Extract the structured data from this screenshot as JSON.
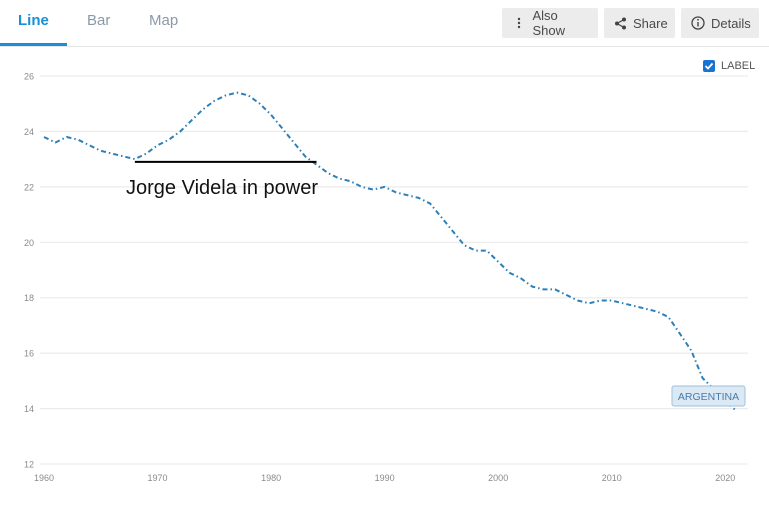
{
  "tabs": [
    {
      "label": "Line",
      "active": true
    },
    {
      "label": "Bar",
      "active": false
    },
    {
      "label": "Map",
      "active": false
    }
  ],
  "toolbar": {
    "also_show": "Also Show",
    "share": "Share",
    "details": "Details"
  },
  "label_toggle": {
    "text": "LABEL",
    "checked": true
  },
  "colors": {
    "accent": "#1a8fd6",
    "series": "#2e7fb8",
    "annotation": "#000000"
  },
  "chart_data": {
    "type": "line",
    "title": "",
    "xlabel": "",
    "ylabel": "",
    "xlim": [
      1960,
      2021
    ],
    "ylim": [
      12,
      26
    ],
    "xticks": [
      1960,
      1970,
      1980,
      1990,
      2000,
      2010,
      2020
    ],
    "yticks": [
      12,
      14,
      16,
      18,
      20,
      22,
      24,
      26
    ],
    "grid": "horizontal",
    "series": [
      {
        "name": "ARGENTINA",
        "line_style": "dash-dot",
        "x": [
          1960,
          1961,
          1962,
          1963,
          1964,
          1965,
          1966,
          1967,
          1968,
          1969,
          1970,
          1971,
          1972,
          1973,
          1974,
          1975,
          1976,
          1977,
          1978,
          1979,
          1980,
          1981,
          1982,
          1983,
          1984,
          1985,
          1986,
          1987,
          1988,
          1989,
          1990,
          1991,
          1992,
          1993,
          1994,
          1995,
          1996,
          1997,
          1998,
          1999,
          2000,
          2001,
          2002,
          2003,
          2004,
          2005,
          2006,
          2007,
          2008,
          2009,
          2010,
          2011,
          2012,
          2013,
          2014,
          2015,
          2016,
          2017,
          2018,
          2019,
          2020,
          2021
        ],
        "y": [
          23.8,
          23.6,
          23.8,
          23.7,
          23.5,
          23.3,
          23.2,
          23.1,
          23.0,
          23.2,
          23.5,
          23.7,
          24.0,
          24.4,
          24.8,
          25.1,
          25.3,
          25.4,
          25.3,
          25.0,
          24.6,
          24.1,
          23.6,
          23.1,
          22.8,
          22.5,
          22.3,
          22.2,
          22.0,
          21.9,
          22.0,
          21.8,
          21.7,
          21.6,
          21.4,
          20.9,
          20.4,
          19.9,
          19.7,
          19.7,
          19.3,
          18.9,
          18.7,
          18.4,
          18.3,
          18.3,
          18.1,
          17.9,
          17.8,
          17.9,
          17.9,
          17.8,
          17.7,
          17.6,
          17.5,
          17.3,
          16.7,
          16.1,
          15.1,
          14.7,
          14.3,
          13.9
        ]
      }
    ],
    "end_label": "ARGENTINA",
    "annotations": [
      {
        "text": "Jorge Videla in power",
        "x_start": 1968,
        "x_end": 1984,
        "y": 22.9
      }
    ]
  }
}
